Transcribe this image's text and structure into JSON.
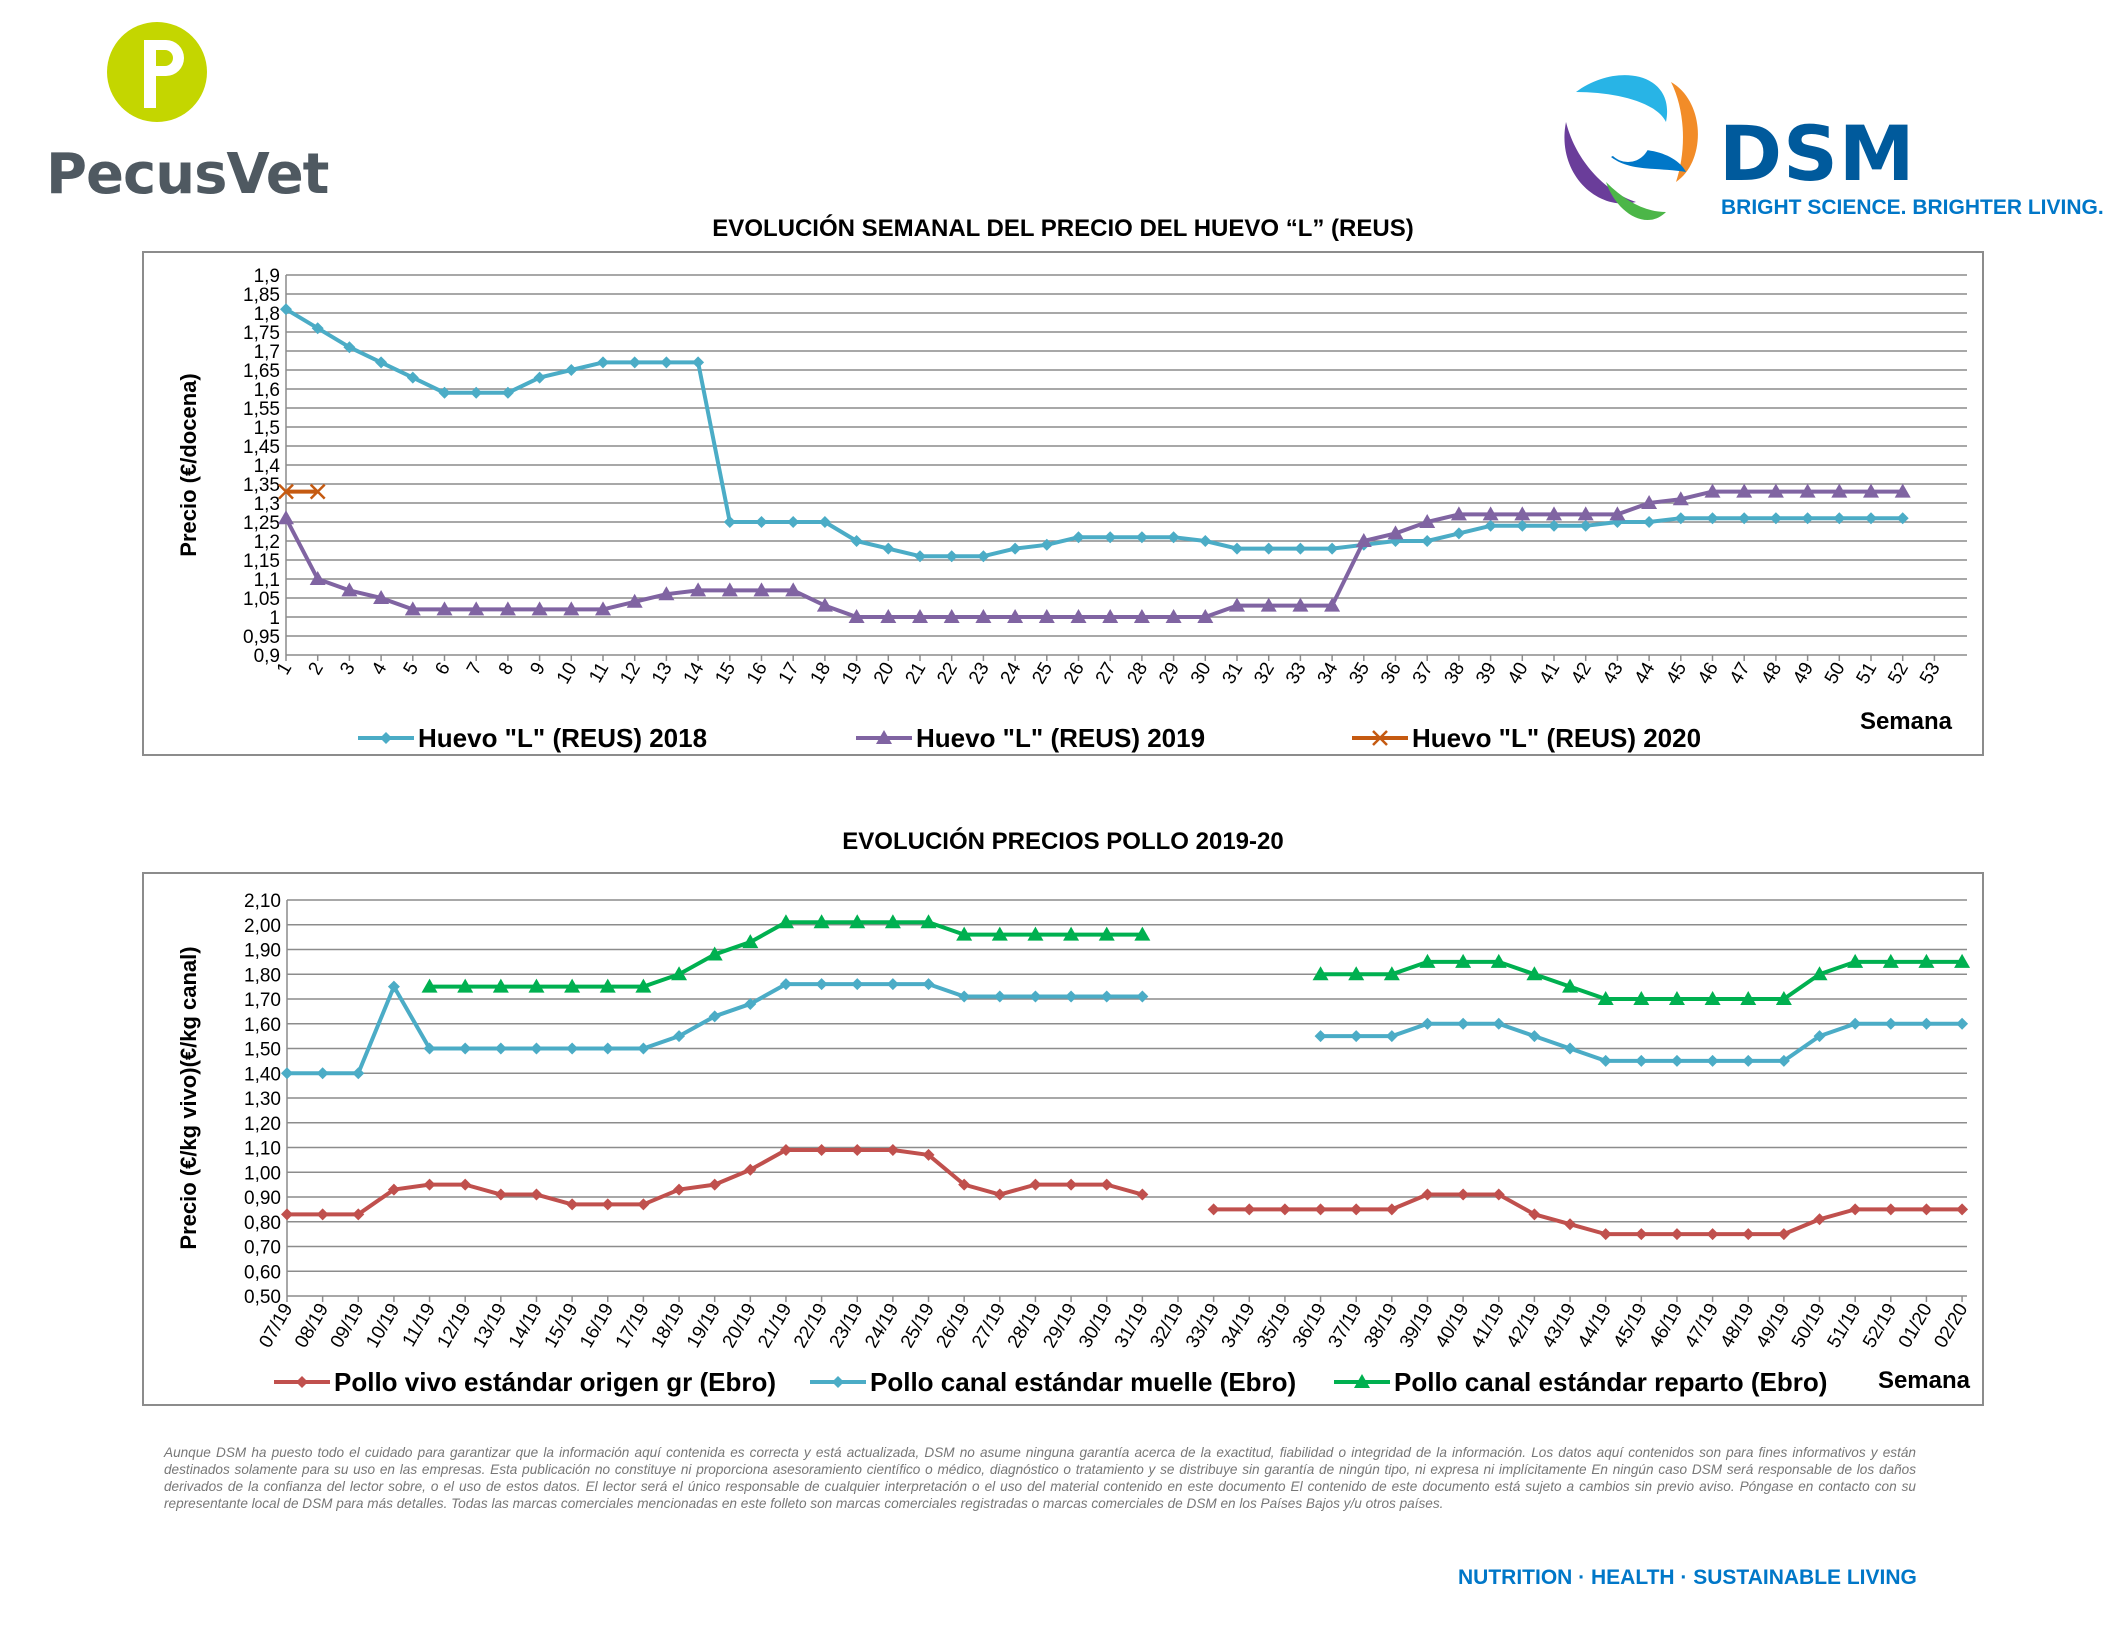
{
  "logos": {
    "pecusvet": {
      "text": "PecusVet",
      "colors": [
        "#c4d600",
        "#4f5961"
      ]
    },
    "dsm": {
      "text": "DSM",
      "tagline": "BRIGHT SCIENCE. BRIGHTER LIVING.",
      "colors": [
        "#005a9c",
        "#0077c8",
        "#f28c28",
        "#6a3d9a",
        "#4cb648",
        "#28b4e6"
      ]
    }
  },
  "footer": {
    "disclaimer": "Aunque DSM ha puesto todo el cuidado para garantizar que la información aquí contenida es correcta y está actualizada, DSM no asume ninguna garantía acerca de la exactitud, fiabilidad o integridad de la información. Los datos aquí contenidos son para fines informativos y están destinados solamente para su uso en las empresas. Esta publicación no constituye ni proporciona asesoramiento científico o médico, diagnóstico o tratamiento y se distribuye sin garantía de ningún tipo, ni expresa ni implícitamente En ningún caso DSM será responsable de los daños derivados de la confianza del lector sobre, o el uso de estos datos. El lector será el único responsable de cualquier interpretación o el uso del material contenido en este documento El contenido de este documento está sujeto a cambios sin previo aviso. Póngase en contacto con su representante local de DSM para más detalles. Todas las marcas comerciales mencionadas en este folleto son marcas comerciales registradas o marcas comerciales de DSM en los Países Bajos y/u otros países.",
    "tagline": "NUTRITION · HEALTH · SUSTAINABLE LIVING"
  },
  "chart_data": [
    {
      "type": "line",
      "title": "EVOLUCIÓN SEMANAL DEL PRECIO DEL HUEVO “L” (REUS)",
      "xlabel": "Semana",
      "ylabel": "Precio (€/docena)",
      "ylim": [
        0.9,
        1.9
      ],
      "ystep": 0.05,
      "ytick_labels": [
        "0,9",
        "0,95",
        "1",
        "1,05",
        "1,1",
        "1,15",
        "1,2",
        "1,25",
        "1,3",
        "1,35",
        "1,4",
        "1,45",
        "1,5",
        "1,55",
        "1,6",
        "1,65",
        "1,7",
        "1,75",
        "1,8",
        "1,85",
        "1,9"
      ],
      "categories": [
        "1",
        "2",
        "3",
        "4",
        "5",
        "6",
        "7",
        "8",
        "9",
        "10",
        "11",
        "12",
        "13",
        "14",
        "15",
        "16",
        "17",
        "18",
        "19",
        "20",
        "21",
        "22",
        "23",
        "24",
        "25",
        "26",
        "27",
        "28",
        "29",
        "30",
        "31",
        "32",
        "33",
        "34",
        "35",
        "36",
        "37",
        "38",
        "39",
        "40",
        "41",
        "42",
        "43",
        "44",
        "45",
        "46",
        "47",
        "48",
        "49",
        "50",
        "51",
        "52",
        "53"
      ],
      "grid": true,
      "legend_position": "bottom",
      "series": [
        {
          "name": "Huevo \"L\" (REUS) 2018",
          "color": "#4bacc6",
          "marker": "diamond",
          "values": [
            1.81,
            1.76,
            1.71,
            1.67,
            1.63,
            1.59,
            1.59,
            1.59,
            1.63,
            1.65,
            1.67,
            1.67,
            1.67,
            1.67,
            1.25,
            1.25,
            1.25,
            1.25,
            1.2,
            1.18,
            1.16,
            1.16,
            1.16,
            1.18,
            1.19,
            1.21,
            1.21,
            1.21,
            1.21,
            1.2,
            1.18,
            1.18,
            1.18,
            1.18,
            1.19,
            1.2,
            1.2,
            1.22,
            1.24,
            1.24,
            1.24,
            1.24,
            1.25,
            1.25,
            1.26,
            1.26,
            1.26,
            1.26,
            1.26,
            1.26,
            1.26,
            1.26,
            null
          ]
        },
        {
          "name": "Huevo \"L\" (REUS) 2019",
          "color": "#8064a2",
          "marker": "triangle",
          "values": [
            1.26,
            1.1,
            1.07,
            1.05,
            1.02,
            1.02,
            1.02,
            1.02,
            1.02,
            1.02,
            1.02,
            1.04,
            1.06,
            1.07,
            1.07,
            1.07,
            1.07,
            1.03,
            1.0,
            1.0,
            1.0,
            1.0,
            1.0,
            1.0,
            1.0,
            1.0,
            1.0,
            1.0,
            1.0,
            1.0,
            1.03,
            1.03,
            1.03,
            1.03,
            1.2,
            1.22,
            1.25,
            1.27,
            1.27,
            1.27,
            1.27,
            1.27,
            1.27,
            1.3,
            1.31,
            1.33,
            1.33,
            1.33,
            1.33,
            1.33,
            1.33,
            1.33,
            null
          ]
        },
        {
          "name": "Huevo \"L\" (REUS) 2020",
          "color": "#c55a11",
          "marker": "x",
          "values": [
            1.33,
            1.33,
            null,
            null,
            null,
            null,
            null,
            null,
            null,
            null,
            null,
            null,
            null,
            null,
            null,
            null,
            null,
            null,
            null,
            null,
            null,
            null,
            null,
            null,
            null,
            null,
            null,
            null,
            null,
            null,
            null,
            null,
            null,
            null,
            null,
            null,
            null,
            null,
            null,
            null,
            null,
            null,
            null,
            null,
            null,
            null,
            null,
            null,
            null,
            null,
            null,
            null,
            null
          ]
        }
      ]
    },
    {
      "type": "line",
      "title": "EVOLUCIÓN PRECIOS POLLO 2019-20",
      "xlabel": "Semana",
      "ylabel": "Precio (€/kg vivo)(€/kg canal)",
      "ylim": [
        0.5,
        2.1
      ],
      "ystep": 0.1,
      "ytick_labels": [
        "0,50",
        "0,60",
        "0,70",
        "0,80",
        "0,90",
        "1,00",
        "1,10",
        "1,20",
        "1,30",
        "1,40",
        "1,50",
        "1,60",
        "1,70",
        "1,80",
        "1,90",
        "2,00",
        "2,10"
      ],
      "categories": [
        "07/19",
        "08/19",
        "09/19",
        "10/19",
        "11/19",
        "12/19",
        "13/19",
        "14/19",
        "15/19",
        "16/19",
        "17/19",
        "18/19",
        "19/19",
        "20/19",
        "21/19",
        "22/19",
        "23/19",
        "24/19",
        "25/19",
        "26/19",
        "27/19",
        "28/19",
        "29/19",
        "30/19",
        "31/19",
        "32/19",
        "33/19",
        "34/19",
        "35/19",
        "36/19",
        "37/19",
        "38/19",
        "39/19",
        "40/19",
        "41/19",
        "42/19",
        "43/19",
        "44/19",
        "45/19",
        "46/19",
        "47/19",
        "48/19",
        "49/19",
        "50/19",
        "51/19",
        "52/19",
        "01/20",
        "02/20"
      ],
      "grid": true,
      "legend_position": "bottom",
      "series": [
        {
          "name": "Pollo vivo estándar origen gr (Ebro)",
          "color": "#c0504d",
          "marker": "diamond",
          "values": [
            0.83,
            0.83,
            0.83,
            0.93,
            0.95,
            0.95,
            0.91,
            0.91,
            0.87,
            0.87,
            0.87,
            0.93,
            0.95,
            1.01,
            1.09,
            1.09,
            1.09,
            1.09,
            1.07,
            0.95,
            0.91,
            0.95,
            0.95,
            0.95,
            0.91,
            null,
            0.85,
            0.85,
            0.85,
            0.85,
            0.85,
            0.85,
            0.91,
            0.91,
            0.91,
            0.83,
            0.79,
            0.75,
            0.75,
            0.75,
            0.75,
            0.75,
            0.75,
            0.81,
            0.85,
            0.85,
            0.85,
            0.85
          ]
        },
        {
          "name": "Pollo canal estándar muelle (Ebro)",
          "color": "#4bacc6",
          "marker": "diamond",
          "values": [
            1.4,
            1.4,
            1.4,
            1.75,
            1.5,
            1.5,
            1.5,
            1.5,
            1.5,
            1.5,
            1.5,
            1.55,
            1.63,
            1.68,
            1.76,
            1.76,
            1.76,
            1.76,
            1.76,
            1.71,
            1.71,
            1.71,
            1.71,
            1.71,
            1.71,
            null,
            null,
            null,
            null,
            1.55,
            1.55,
            1.55,
            1.6,
            1.6,
            1.6,
            1.55,
            1.5,
            1.45,
            1.45,
            1.45,
            1.45,
            1.45,
            1.45,
            1.55,
            1.6,
            1.6,
            1.6,
            1.6
          ]
        },
        {
          "name": "Pollo canal estándar reparto (Ebro)",
          "color": "#00b050",
          "marker": "triangle",
          "values": [
            null,
            null,
            null,
            null,
            1.75,
            1.75,
            1.75,
            1.75,
            1.75,
            1.75,
            1.75,
            1.8,
            1.88,
            1.93,
            2.01,
            2.01,
            2.01,
            2.01,
            2.01,
            1.96,
            1.96,
            1.96,
            1.96,
            1.96,
            1.96,
            null,
            null,
            null,
            null,
            1.8,
            1.8,
            1.8,
            1.85,
            1.85,
            1.85,
            1.8,
            1.75,
            1.7,
            1.7,
            1.7,
            1.7,
            1.7,
            1.7,
            1.8,
            1.85,
            1.85,
            1.85,
            1.85
          ]
        }
      ]
    }
  ]
}
